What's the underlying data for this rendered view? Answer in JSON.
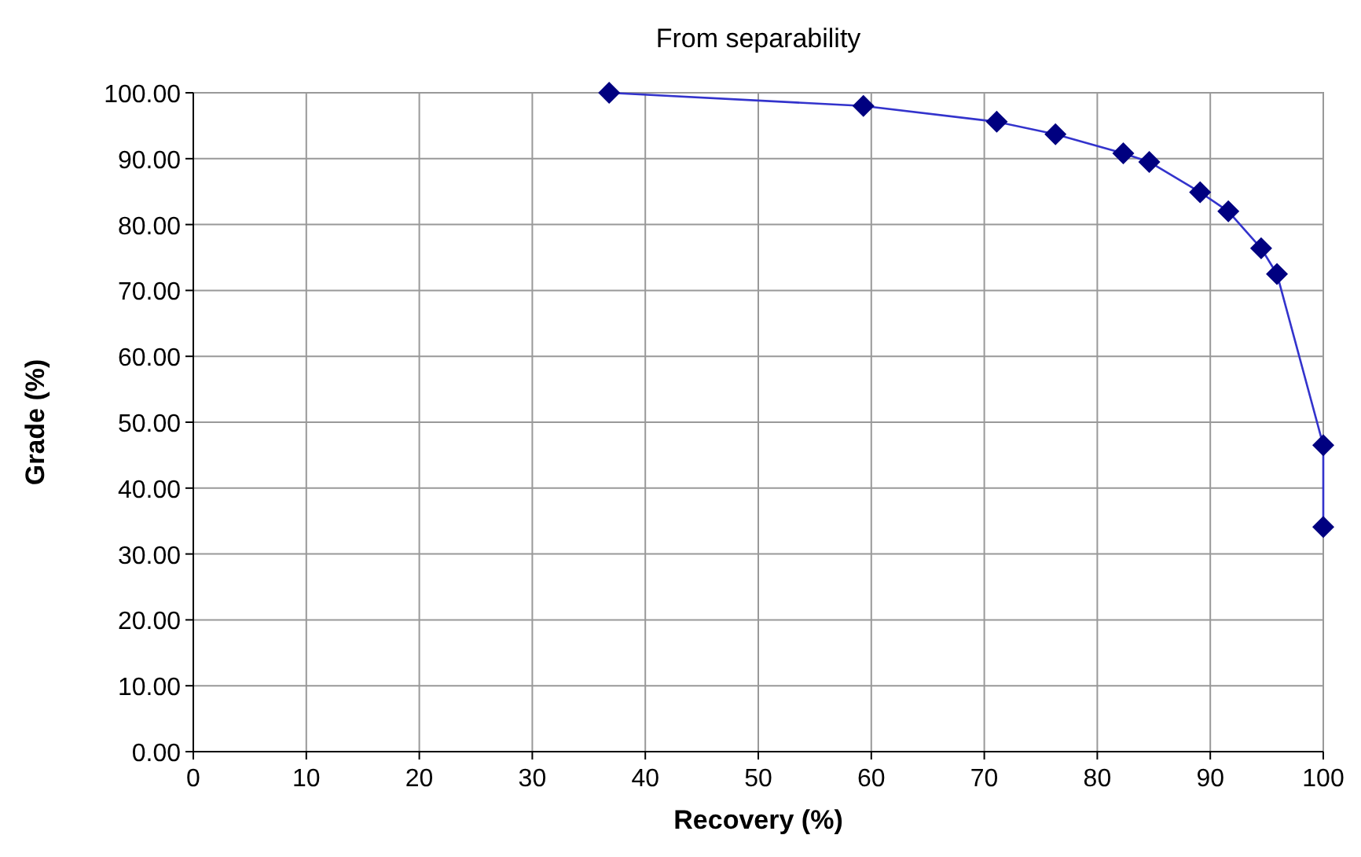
{
  "chart_data": {
    "type": "line",
    "title": "From separability",
    "xlabel": "Recovery (%)",
    "ylabel": "Grade (%)",
    "xlim": [
      0,
      100
    ],
    "xticks": [
      0,
      10,
      20,
      30,
      40,
      50,
      60,
      70,
      80,
      90,
      100
    ],
    "ylim": [
      0,
      100
    ],
    "yticks": [
      {
        "value": 0,
        "label": "0.00"
      },
      {
        "value": 10,
        "label": "10.00"
      },
      {
        "value": 20,
        "label": "20.00"
      },
      {
        "value": 30,
        "label": "30.00"
      },
      {
        "value": 40,
        "label": "40.00"
      },
      {
        "value": 50,
        "label": "50.00"
      },
      {
        "value": 60,
        "label": "60.00"
      },
      {
        "value": 70,
        "label": "70.00"
      },
      {
        "value": 80,
        "label": "80.00"
      },
      {
        "value": 90,
        "label": "90.00"
      },
      {
        "value": 100,
        "label": "100.00"
      }
    ],
    "grid": true,
    "marker": "diamond",
    "line_style": "solid",
    "series": [
      {
        "color": "#000080",
        "x": [
          36.8,
          59.3,
          71.1,
          76.3,
          82.3,
          84.6,
          89.1,
          91.6,
          94.5,
          95.9,
          100,
          100
        ],
        "values": [
          100,
          98,
          95.6,
          93.7,
          90.8,
          89.5,
          84.9,
          82,
          76.4,
          72.5,
          46.5,
          34.1
        ]
      }
    ]
  }
}
